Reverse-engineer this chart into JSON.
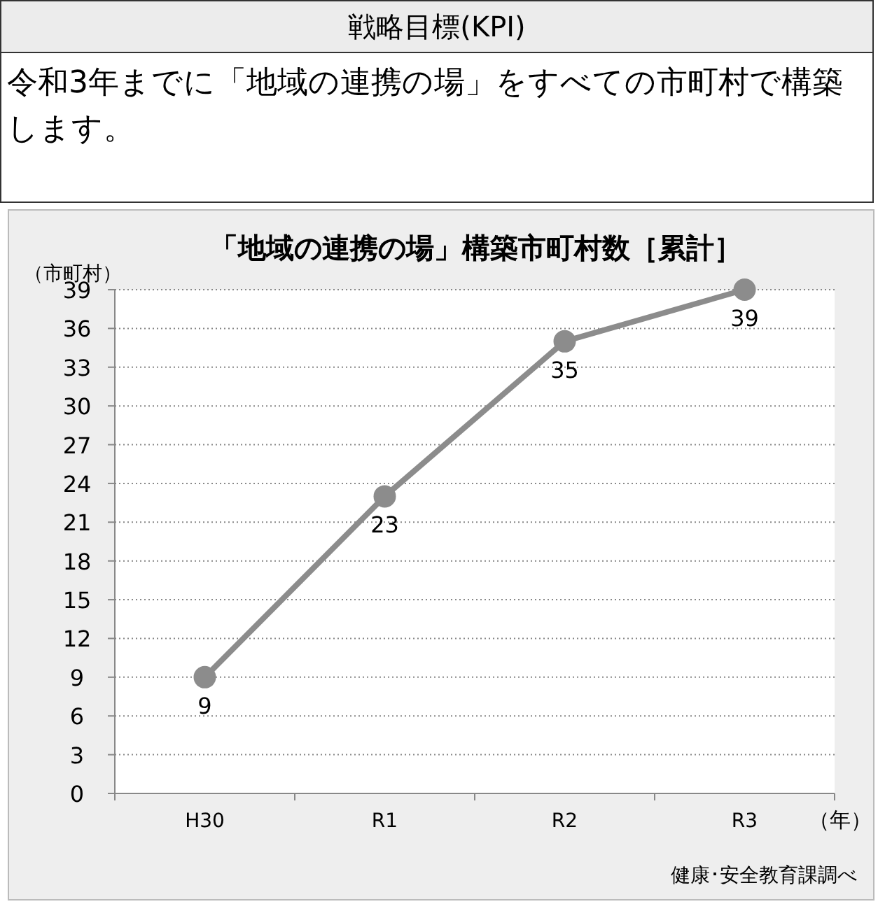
{
  "chart_data": {
    "type": "line",
    "title": "「地域の連携の場」構築市町村数［累計］",
    "ylabel": "（市町村）",
    "xlabel": "（年）",
    "annotations": [
      "戦略目標(KPI)",
      "令和3年までに「地域の連携の場」をすべての市町村で構築します。",
      "健康･安全教育課調べ"
    ],
    "categories": [
      "H30",
      "R1",
      "R2",
      "R3"
    ],
    "series": [
      {
        "color": "#8c8c8c",
        "values": [
          9,
          23,
          35,
          39
        ]
      }
    ],
    "ylim": [
      0,
      39
    ],
    "yticks": [
      0,
      3,
      6,
      9,
      12,
      15,
      18,
      21,
      24,
      27,
      30,
      33,
      36,
      39
    ],
    "grid": "y",
    "marker": "circle",
    "data_labels": true
  }
}
